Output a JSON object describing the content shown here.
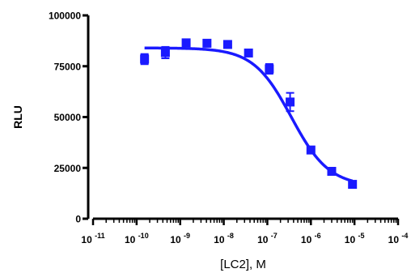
{
  "chart_data": {
    "type": "scatter",
    "xlabel": "[LC2], M",
    "ylabel": "RLU",
    "x_scale": "log",
    "xlim": [
      1e-11,
      0.0001
    ],
    "ylim": [
      0,
      100000
    ],
    "x_ticks": [
      {
        "base": "10",
        "exp": "-11"
      },
      {
        "base": "10",
        "exp": "-10"
      },
      {
        "base": "10",
        "exp": "-9"
      },
      {
        "base": "10",
        "exp": "-8"
      },
      {
        "base": "10",
        "exp": "-7"
      },
      {
        "base": "10",
        "exp": "-6"
      },
      {
        "base": "10",
        "exp": "-5"
      },
      {
        "base": "10",
        "exp": "-4"
      }
    ],
    "y_ticks": [
      "0",
      "25000",
      "50000",
      "75000",
      "100000"
    ],
    "series": [
      {
        "color": "#1a1aff",
        "marker": "square",
        "points": [
          {
            "x": 1.52e-10,
            "y": 78500,
            "err": 2500
          },
          {
            "x": 4.57e-10,
            "y": 81700,
            "err": 2800
          },
          {
            "x": 1.37e-09,
            "y": 86500,
            "err": 1600
          },
          {
            "x": 4.12e-09,
            "y": 86300,
            "err": 1300
          },
          {
            "x": 1.23e-08,
            "y": 85700,
            "err": 1300
          },
          {
            "x": 3.7e-08,
            "y": 81500,
            "err": 800
          },
          {
            "x": 1.11e-07,
            "y": 73700,
            "err": 2400
          },
          {
            "x": 3.33e-07,
            "y": 57400,
            "err": 4500
          },
          {
            "x": 1e-06,
            "y": 33800,
            "err": 1600
          },
          {
            "x": 3e-06,
            "y": 23300,
            "err": 1200
          },
          {
            "x": 9e-06,
            "y": 16900,
            "err": 600
          }
        ],
        "fit": {
          "top": 84000,
          "bottom": 16000,
          "log_ic50": -6.45,
          "hill_slope": -1.0
        }
      }
    ]
  }
}
